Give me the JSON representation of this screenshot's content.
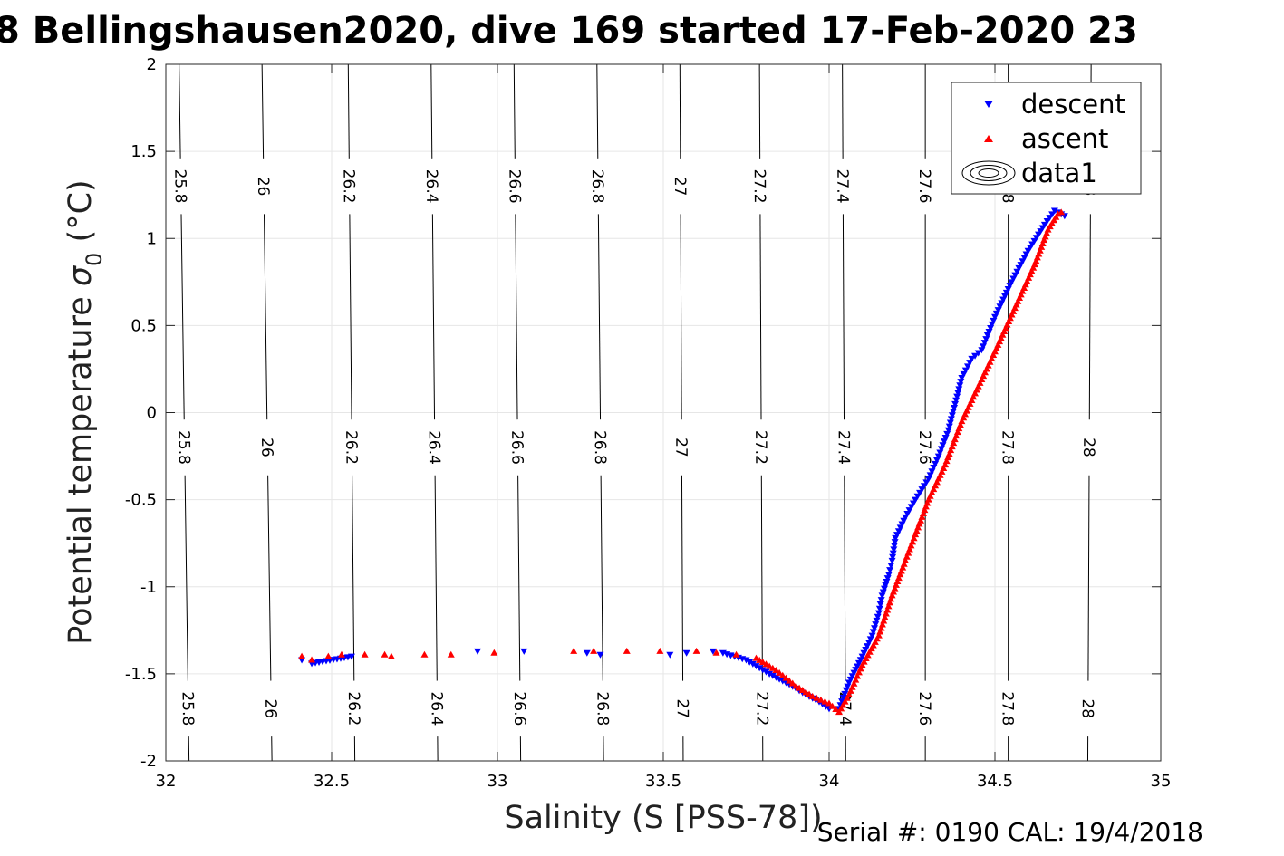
{
  "chart_data": {
    "type": "scatter",
    "title": "8 Bellingshausen2020, dive 169 started 17-Feb-2020 23",
    "xlabel": "Salinity (S [PSS-78])",
    "ylabel_main": "Potential temperature ",
    "ylabel_sigma": "σ",
    "ylabel_sub": "0",
    "ylabel_unit": " (°C)",
    "footnote": "Serial #: 0190  CAL: 19/4/2018",
    "xlim": [
      32,
      35
    ],
    "ylim": [
      -2,
      2
    ],
    "xticks": [
      32,
      32.5,
      33,
      33.5,
      34,
      34.5,
      35
    ],
    "xtick_labels": [
      "32",
      "32.5",
      "33",
      "33.5",
      "34",
      "34.5",
      "35"
    ],
    "yticks": [
      -2,
      -1.5,
      -1,
      -0.5,
      0,
      0.5,
      1,
      1.5,
      2
    ],
    "ytick_labels": [
      "-2",
      "-1.5",
      "-1",
      "-0.5",
      "0",
      "0.5",
      "1",
      "1.5",
      "2"
    ],
    "grid": true,
    "legend_position": "top-right",
    "legend": [
      {
        "label": "descent",
        "marker": "triangle-down",
        "color": "#0000ff"
      },
      {
        "label": "ascent",
        "marker": "triangle-up",
        "color": "#ff0000"
      },
      {
        "label": "data1",
        "marker": "contour"
      }
    ],
    "contours": [
      {
        "level": "25.8",
        "s_at_t": [
          [
            -2,
            32.07
          ],
          [
            2,
            32.04
          ]
        ]
      },
      {
        "level": "26",
        "s_at_t": [
          [
            -2,
            32.32
          ],
          [
            2,
            32.29
          ]
        ]
      },
      {
        "level": "26.2",
        "s_at_t": [
          [
            -2,
            32.57
          ],
          [
            2,
            32.55
          ]
        ]
      },
      {
        "level": "26.4",
        "s_at_t": [
          [
            -2,
            32.82
          ],
          [
            2,
            32.8
          ]
        ]
      },
      {
        "level": "26.6",
        "s_at_t": [
          [
            -2,
            33.07
          ],
          [
            2,
            33.05
          ]
        ]
      },
      {
        "level": "26.8",
        "s_at_t": [
          [
            -2,
            33.32
          ],
          [
            2,
            33.3
          ]
        ]
      },
      {
        "level": "27",
        "s_at_t": [
          [
            -2,
            33.56
          ],
          [
            2,
            33.55
          ]
        ]
      },
      {
        "level": "27.2",
        "s_at_t": [
          [
            -2,
            33.8
          ],
          [
            2,
            33.79
          ]
        ]
      },
      {
        "level": "27.4",
        "s_at_t": [
          [
            -2,
            34.05
          ],
          [
            2,
            34.04
          ]
        ]
      },
      {
        "level": "27.6",
        "s_at_t": [
          [
            -2,
            34.29
          ],
          [
            2,
            34.29
          ]
        ]
      },
      {
        "level": "27.8",
        "s_at_t": [
          [
            -2,
            34.54
          ],
          [
            2,
            34.54
          ]
        ]
      },
      {
        "level": "28",
        "s_at_t": [
          [
            -2,
            34.78
          ],
          [
            2,
            34.79
          ]
        ]
      }
    ],
    "series": [
      {
        "name": "descent",
        "color": "#0000ff",
        "marker": "triangle-down",
        "x": [
          32.41,
          32.44,
          32.56,
          32.94,
          33.08,
          33.27,
          33.31,
          33.52,
          33.57,
          33.65,
          33.68,
          33.75,
          33.82,
          33.88,
          33.93,
          33.97,
          34.0,
          34.03,
          34.06,
          34.1,
          34.13,
          34.15,
          34.16,
          34.18,
          34.19,
          34.2,
          34.21,
          34.23,
          34.26,
          34.3,
          34.33,
          34.36,
          34.38,
          34.4,
          34.43,
          34.46,
          34.5,
          34.55,
          34.6,
          34.65,
          34.68,
          34.71
        ],
        "y": [
          -1.42,
          -1.44,
          -1.4,
          -1.37,
          -1.37,
          -1.38,
          -1.39,
          -1.39,
          -1.38,
          -1.37,
          -1.38,
          -1.42,
          -1.5,
          -1.56,
          -1.62,
          -1.66,
          -1.7,
          -1.7,
          -1.55,
          -1.4,
          -1.28,
          -1.15,
          -1.05,
          -0.93,
          -0.85,
          -0.72,
          -0.68,
          -0.6,
          -0.5,
          -0.38,
          -0.25,
          -0.1,
          0.05,
          0.2,
          0.31,
          0.36,
          0.55,
          0.75,
          0.93,
          1.08,
          1.16,
          1.13
        ]
      },
      {
        "name": "ascent",
        "color": "#ff0000",
        "marker": "triangle-up",
        "x": [
          32.41,
          32.44,
          32.49,
          32.53,
          32.6,
          32.66,
          32.68,
          32.78,
          32.86,
          32.99,
          33.23,
          33.29,
          33.39,
          33.49,
          33.6,
          33.66,
          33.72,
          33.78,
          33.84,
          33.9,
          33.95,
          34.0,
          34.03,
          34.06,
          34.1,
          34.15,
          34.19,
          34.23,
          34.26,
          34.3,
          34.35,
          34.4,
          34.45,
          34.5,
          34.56,
          34.62,
          34.66,
          34.69,
          34.7
        ],
        "y": [
          -1.4,
          -1.42,
          -1.4,
          -1.39,
          -1.39,
          -1.39,
          -1.4,
          -1.39,
          -1.39,
          -1.38,
          -1.37,
          -1.37,
          -1.37,
          -1.37,
          -1.37,
          -1.38,
          -1.39,
          -1.41,
          -1.48,
          -1.57,
          -1.63,
          -1.67,
          -1.72,
          -1.62,
          -1.45,
          -1.28,
          -1.05,
          -0.85,
          -0.7,
          -0.5,
          -0.3,
          -0.05,
          0.15,
          0.35,
          0.6,
          0.85,
          1.05,
          1.14,
          1.15
        ]
      }
    ]
  }
}
